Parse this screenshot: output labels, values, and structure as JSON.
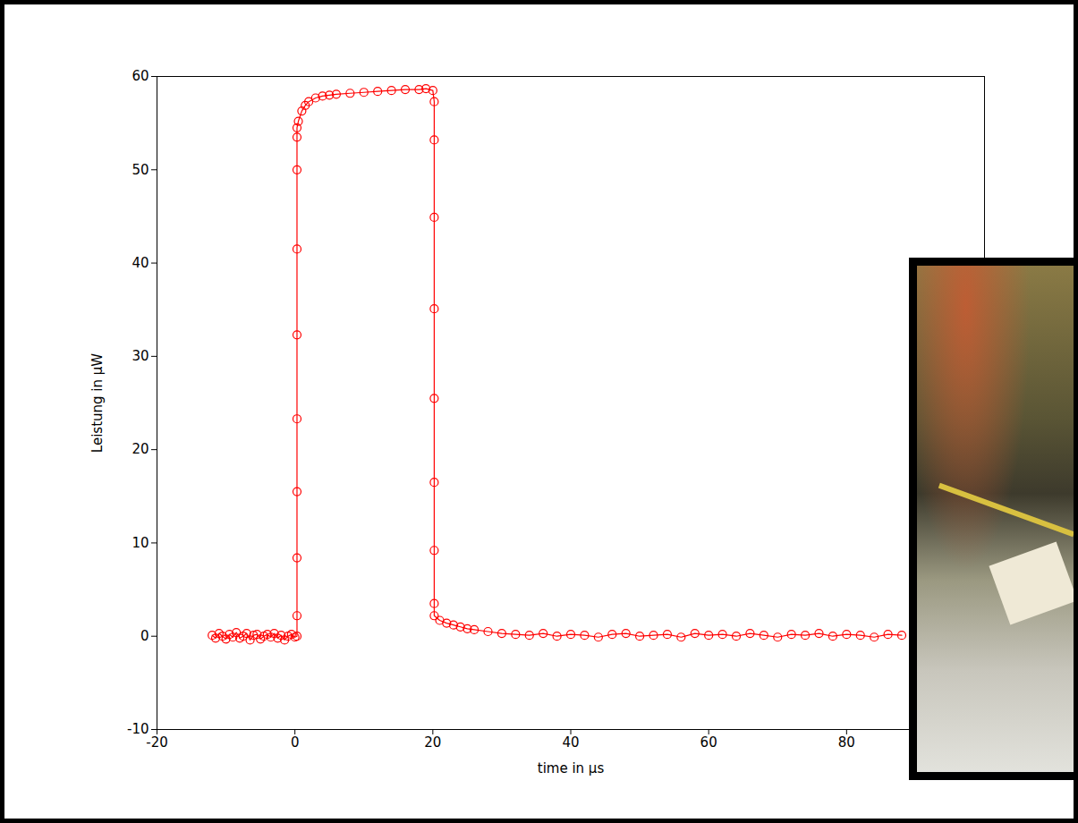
{
  "chart_data": {
    "type": "line",
    "x_label": "time in µs",
    "y_label": "Leistung in µW",
    "color": "#ff0000",
    "marker": "circle",
    "grid": false,
    "xlim": [
      -20,
      100
    ],
    "xticks": [
      -20,
      0,
      20,
      40,
      60,
      80
    ],
    "ylim": [
      -10,
      60
    ],
    "yticks": [
      -10,
      0,
      10,
      20,
      30,
      40,
      50,
      60
    ],
    "x": [
      -12,
      -11.5,
      -11,
      -10.5,
      -10,
      -9.5,
      -9,
      -8.5,
      -8,
      -7.5,
      -7,
      -6.5,
      -6,
      -5.5,
      -5,
      -4.5,
      -4,
      -3.5,
      -3,
      -2.5,
      -2,
      -1.5,
      -1,
      -0.5,
      0,
      0.3,
      0.3,
      0.3,
      0.3,
      0.3,
      0.3,
      0.3,
      0.3,
      0.3,
      0.3,
      0.5,
      1,
      1.5,
      2,
      3,
      4,
      5,
      6,
      8,
      10,
      12,
      14,
      16,
      18,
      19,
      20,
      20.2,
      20.2,
      20.2,
      20.2,
      20.2,
      20.2,
      20.2,
      20.2,
      20.2,
      21,
      22,
      23,
      24,
      25,
      26,
      28,
      30,
      32,
      34,
      36,
      38,
      40,
      42,
      44,
      46,
      48,
      50,
      52,
      54,
      56,
      58,
      60,
      62,
      64,
      66,
      68,
      70,
      72,
      74,
      76,
      78,
      80,
      82,
      84,
      86,
      88
    ],
    "values": [
      0.1,
      -0.2,
      0.3,
      0,
      -0.3,
      0.2,
      -0.1,
      0.4,
      -0.2,
      0,
      0.3,
      -0.4,
      0.1,
      0.2,
      -0.3,
      0,
      0.2,
      -0.1,
      0.3,
      -0.2,
      0.1,
      -0.4,
      0,
      0.2,
      -0.1,
      0,
      2.2,
      8.4,
      15.5,
      23.3,
      32.3,
      41.5,
      50,
      53.5,
      54.5,
      55.2,
      56.3,
      56.9,
      57.3,
      57.7,
      57.9,
      58,
      58.1,
      58.2,
      58.3,
      58.4,
      58.5,
      58.6,
      58.6,
      58.7,
      58.5,
      57.3,
      53.2,
      44.9,
      35.1,
      25.5,
      16.5,
      9.2,
      3.5,
      2.2,
      1.7,
      1.4,
      1.2,
      1,
      0.8,
      0.7,
      0.5,
      0.3,
      0.2,
      0.1,
      0.3,
      0,
      0.2,
      0.1,
      -0.1,
      0.2,
      0.3,
      0,
      0.1,
      0.2,
      -0.1,
      0.3,
      0.1,
      0.2,
      0,
      0.3,
      0.1,
      -0.1,
      0.2,
      0.1,
      0.3,
      0,
      0.2,
      0.1,
      -0.1,
      0.2,
      0.1
    ]
  }
}
